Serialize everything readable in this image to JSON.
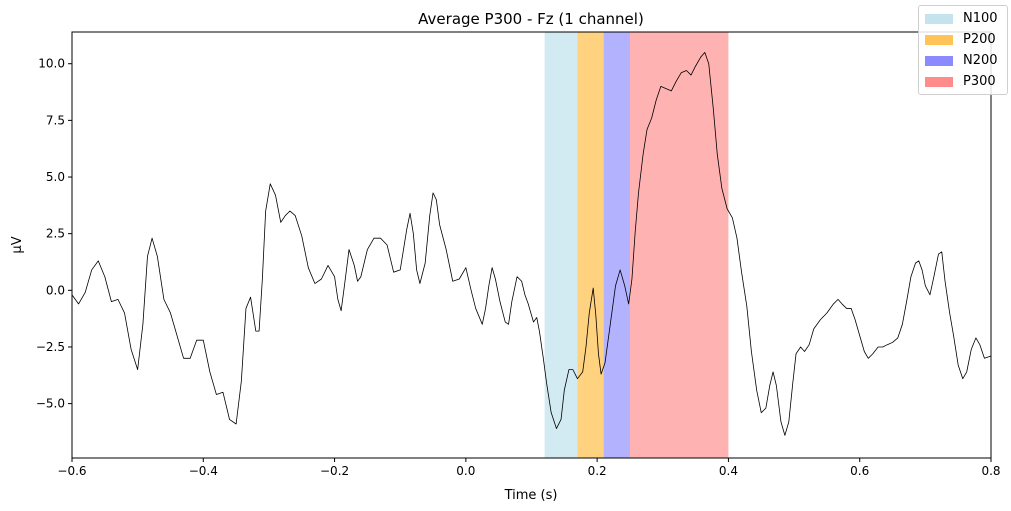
{
  "chart_data": {
    "type": "line",
    "title": "Average P300 - Fz (1 channel)",
    "xlabel": "Time (s)",
    "ylabel": "µV",
    "xlim": [
      -0.6,
      0.8
    ],
    "ylim": [
      -7.4,
      11.4
    ],
    "grid": false,
    "legend_placement": "top-right",
    "x_ticks": [
      -0.6,
      -0.4,
      -0.2,
      0.0,
      0.2,
      0.4,
      0.6,
      0.8
    ],
    "x_tick_labels": [
      "−0.6",
      "−0.4",
      "−0.2",
      "0.0",
      "0.2",
      "0.4",
      "0.6",
      "0.8"
    ],
    "y_ticks": [
      -5.0,
      -2.5,
      0.0,
      2.5,
      5.0,
      7.5,
      10.0
    ],
    "y_tick_labels": [
      "−5.0",
      "−2.5",
      "0.0",
      "2.5",
      "5.0",
      "7.5",
      "10.0"
    ],
    "regions": [
      {
        "name": "N100",
        "start": 0.12,
        "end": 0.17,
        "color": "#ADD8E6",
        "opacity": 0.55
      },
      {
        "name": "P200",
        "start": 0.17,
        "end": 0.21,
        "color": "#FFA500",
        "opacity": 0.5
      },
      {
        "name": "N200",
        "start": 0.21,
        "end": 0.25,
        "color": "#0000FF",
        "opacity": 0.3
      },
      {
        "name": "P300",
        "start": 0.25,
        "end": 0.4,
        "color": "#FF0000",
        "opacity": 0.3
      }
    ],
    "series": [
      {
        "color": "#000000",
        "points": [
          [
            -0.6,
            -0.2
          ],
          [
            -0.59,
            -0.6
          ],
          [
            -0.58,
            -0.1
          ],
          [
            -0.57,
            0.9
          ],
          [
            -0.56,
            1.3
          ],
          [
            -0.55,
            0.6
          ],
          [
            -0.54,
            -0.5
          ],
          [
            -0.53,
            -0.4
          ],
          [
            -0.52,
            -1.0
          ],
          [
            -0.51,
            -2.6
          ],
          [
            -0.5,
            -3.5
          ],
          [
            -0.492,
            -1.5
          ],
          [
            -0.485,
            1.5
          ],
          [
            -0.478,
            2.3
          ],
          [
            -0.47,
            1.5
          ],
          [
            -0.46,
            -0.4
          ],
          [
            -0.45,
            -1.0
          ],
          [
            -0.44,
            -2.0
          ],
          [
            -0.43,
            -3.0
          ],
          [
            -0.42,
            -3.0
          ],
          [
            -0.41,
            -2.2
          ],
          [
            -0.4,
            -2.2
          ],
          [
            -0.39,
            -3.6
          ],
          [
            -0.38,
            -4.6
          ],
          [
            -0.37,
            -4.5
          ],
          [
            -0.36,
            -5.7
          ],
          [
            -0.35,
            -5.9
          ],
          [
            -0.342,
            -4.0
          ],
          [
            -0.335,
            -0.8
          ],
          [
            -0.328,
            -0.3
          ],
          [
            -0.32,
            -1.8
          ],
          [
            -0.315,
            -1.8
          ],
          [
            -0.31,
            0.5
          ],
          [
            -0.305,
            3.5
          ],
          [
            -0.298,
            4.7
          ],
          [
            -0.29,
            4.2
          ],
          [
            -0.282,
            3.0
          ],
          [
            -0.275,
            3.3
          ],
          [
            -0.268,
            3.5
          ],
          [
            -0.26,
            3.3
          ],
          [
            -0.25,
            2.4
          ],
          [
            -0.24,
            1.0
          ],
          [
            -0.23,
            0.3
          ],
          [
            -0.22,
            0.5
          ],
          [
            -0.21,
            1.1
          ],
          [
            -0.2,
            0.6
          ],
          [
            -0.195,
            -0.4
          ],
          [
            -0.19,
            -0.9
          ],
          [
            -0.185,
            0.2
          ],
          [
            -0.178,
            1.8
          ],
          [
            -0.17,
            1.1
          ],
          [
            -0.165,
            0.4
          ],
          [
            -0.16,
            0.6
          ],
          [
            -0.15,
            1.8
          ],
          [
            -0.14,
            2.3
          ],
          [
            -0.13,
            2.3
          ],
          [
            -0.12,
            2.0
          ],
          [
            -0.11,
            0.8
          ],
          [
            -0.1,
            0.9
          ],
          [
            -0.09,
            2.7
          ],
          [
            -0.085,
            3.4
          ],
          [
            -0.08,
            2.5
          ],
          [
            -0.075,
            0.9
          ],
          [
            -0.07,
            0.3
          ],
          [
            -0.062,
            1.2
          ],
          [
            -0.055,
            3.3
          ],
          [
            -0.05,
            4.3
          ],
          [
            -0.045,
            4.0
          ],
          [
            -0.04,
            2.9
          ],
          [
            -0.03,
            1.8
          ],
          [
            -0.02,
            0.4
          ],
          [
            -0.01,
            0.5
          ],
          [
            0.0,
            1.0
          ],
          [
            0.008,
            0.0
          ],
          [
            0.015,
            -0.8
          ],
          [
            0.025,
            -1.5
          ],
          [
            0.03,
            -0.8
          ],
          [
            0.035,
            0.2
          ],
          [
            0.04,
            1.0
          ],
          [
            0.045,
            0.5
          ],
          [
            0.052,
            -0.5
          ],
          [
            0.06,
            -1.4
          ],
          [
            0.065,
            -1.5
          ],
          [
            0.07,
            -0.5
          ],
          [
            0.078,
            0.6
          ],
          [
            0.085,
            0.4
          ],
          [
            0.09,
            -0.2
          ],
          [
            0.095,
            -0.6
          ],
          [
            0.103,
            -1.4
          ],
          [
            0.108,
            -1.2
          ],
          [
            0.112,
            -1.8
          ],
          [
            0.118,
            -3.0
          ],
          [
            0.123,
            -4.1
          ],
          [
            0.13,
            -5.4
          ],
          [
            0.138,
            -6.1
          ],
          [
            0.145,
            -5.7
          ],
          [
            0.15,
            -4.4
          ],
          [
            0.157,
            -3.5
          ],
          [
            0.163,
            -3.5
          ],
          [
            0.17,
            -3.9
          ],
          [
            0.178,
            -3.6
          ],
          [
            0.183,
            -2.5
          ],
          [
            0.188,
            -1.0
          ],
          [
            0.194,
            0.1
          ],
          [
            0.198,
            -1.1
          ],
          [
            0.202,
            -2.8
          ],
          [
            0.206,
            -3.7
          ],
          [
            0.212,
            -3.2
          ],
          [
            0.22,
            -1.5
          ],
          [
            0.228,
            0.2
          ],
          [
            0.235,
            0.9
          ],
          [
            0.242,
            0.2
          ],
          [
            0.248,
            -0.6
          ],
          [
            0.253,
            0.5
          ],
          [
            0.258,
            2.6
          ],
          [
            0.263,
            4.3
          ],
          [
            0.27,
            6.0
          ],
          [
            0.276,
            7.1
          ],
          [
            0.283,
            7.6
          ],
          [
            0.29,
            8.4
          ],
          [
            0.297,
            9.0
          ],
          [
            0.305,
            8.9
          ],
          [
            0.313,
            8.8
          ],
          [
            0.32,
            9.2
          ],
          [
            0.328,
            9.6
          ],
          [
            0.336,
            9.7
          ],
          [
            0.343,
            9.5
          ],
          [
            0.35,
            9.9
          ],
          [
            0.358,
            10.3
          ],
          [
            0.364,
            10.5
          ],
          [
            0.37,
            10.0
          ],
          [
            0.377,
            8.0
          ],
          [
            0.383,
            6.0
          ],
          [
            0.39,
            4.5
          ],
          [
            0.398,
            3.6
          ],
          [
            0.406,
            3.2
          ],
          [
            0.413,
            2.3
          ],
          [
            0.42,
            0.8
          ],
          [
            0.428,
            -0.7
          ],
          [
            0.435,
            -2.7
          ],
          [
            0.443,
            -4.4
          ],
          [
            0.45,
            -5.4
          ],
          [
            0.457,
            -5.2
          ],
          [
            0.463,
            -4.2
          ],
          [
            0.468,
            -3.6
          ],
          [
            0.473,
            -4.2
          ],
          [
            0.48,
            -5.8
          ],
          [
            0.486,
            -6.4
          ],
          [
            0.492,
            -5.8
          ],
          [
            0.498,
            -4.1
          ],
          [
            0.503,
            -2.8
          ],
          [
            0.51,
            -2.5
          ],
          [
            0.516,
            -2.7
          ],
          [
            0.523,
            -2.4
          ],
          [
            0.53,
            -1.7
          ],
          [
            0.54,
            -1.3
          ],
          [
            0.55,
            -1.0
          ],
          [
            0.56,
            -0.6
          ],
          [
            0.567,
            -0.4
          ],
          [
            0.573,
            -0.6
          ],
          [
            0.58,
            -0.8
          ],
          [
            0.587,
            -0.8
          ],
          [
            0.593,
            -1.3
          ],
          [
            0.6,
            -2.0
          ],
          [
            0.607,
            -2.7
          ],
          [
            0.613,
            -3.0
          ],
          [
            0.62,
            -2.8
          ],
          [
            0.628,
            -2.5
          ],
          [
            0.635,
            -2.5
          ],
          [
            0.642,
            -2.4
          ],
          [
            0.65,
            -2.3
          ],
          [
            0.658,
            -2.1
          ],
          [
            0.665,
            -1.5
          ],
          [
            0.672,
            -0.4
          ],
          [
            0.678,
            0.6
          ],
          [
            0.685,
            1.2
          ],
          [
            0.69,
            1.3
          ],
          [
            0.695,
            0.9
          ],
          [
            0.7,
            0.2
          ],
          [
            0.707,
            -0.2
          ],
          [
            0.713,
            0.6
          ],
          [
            0.72,
            1.6
          ],
          [
            0.725,
            1.7
          ],
          [
            0.73,
            0.4
          ],
          [
            0.737,
            -1.0
          ],
          [
            0.743,
            -2.0
          ],
          [
            0.75,
            -3.3
          ],
          [
            0.757,
            -3.9
          ],
          [
            0.763,
            -3.6
          ],
          [
            0.77,
            -2.6
          ],
          [
            0.777,
            -2.1
          ],
          [
            0.783,
            -2.4
          ],
          [
            0.79,
            -3.0
          ],
          [
            0.8,
            -2.9
          ]
        ]
      }
    ]
  }
}
